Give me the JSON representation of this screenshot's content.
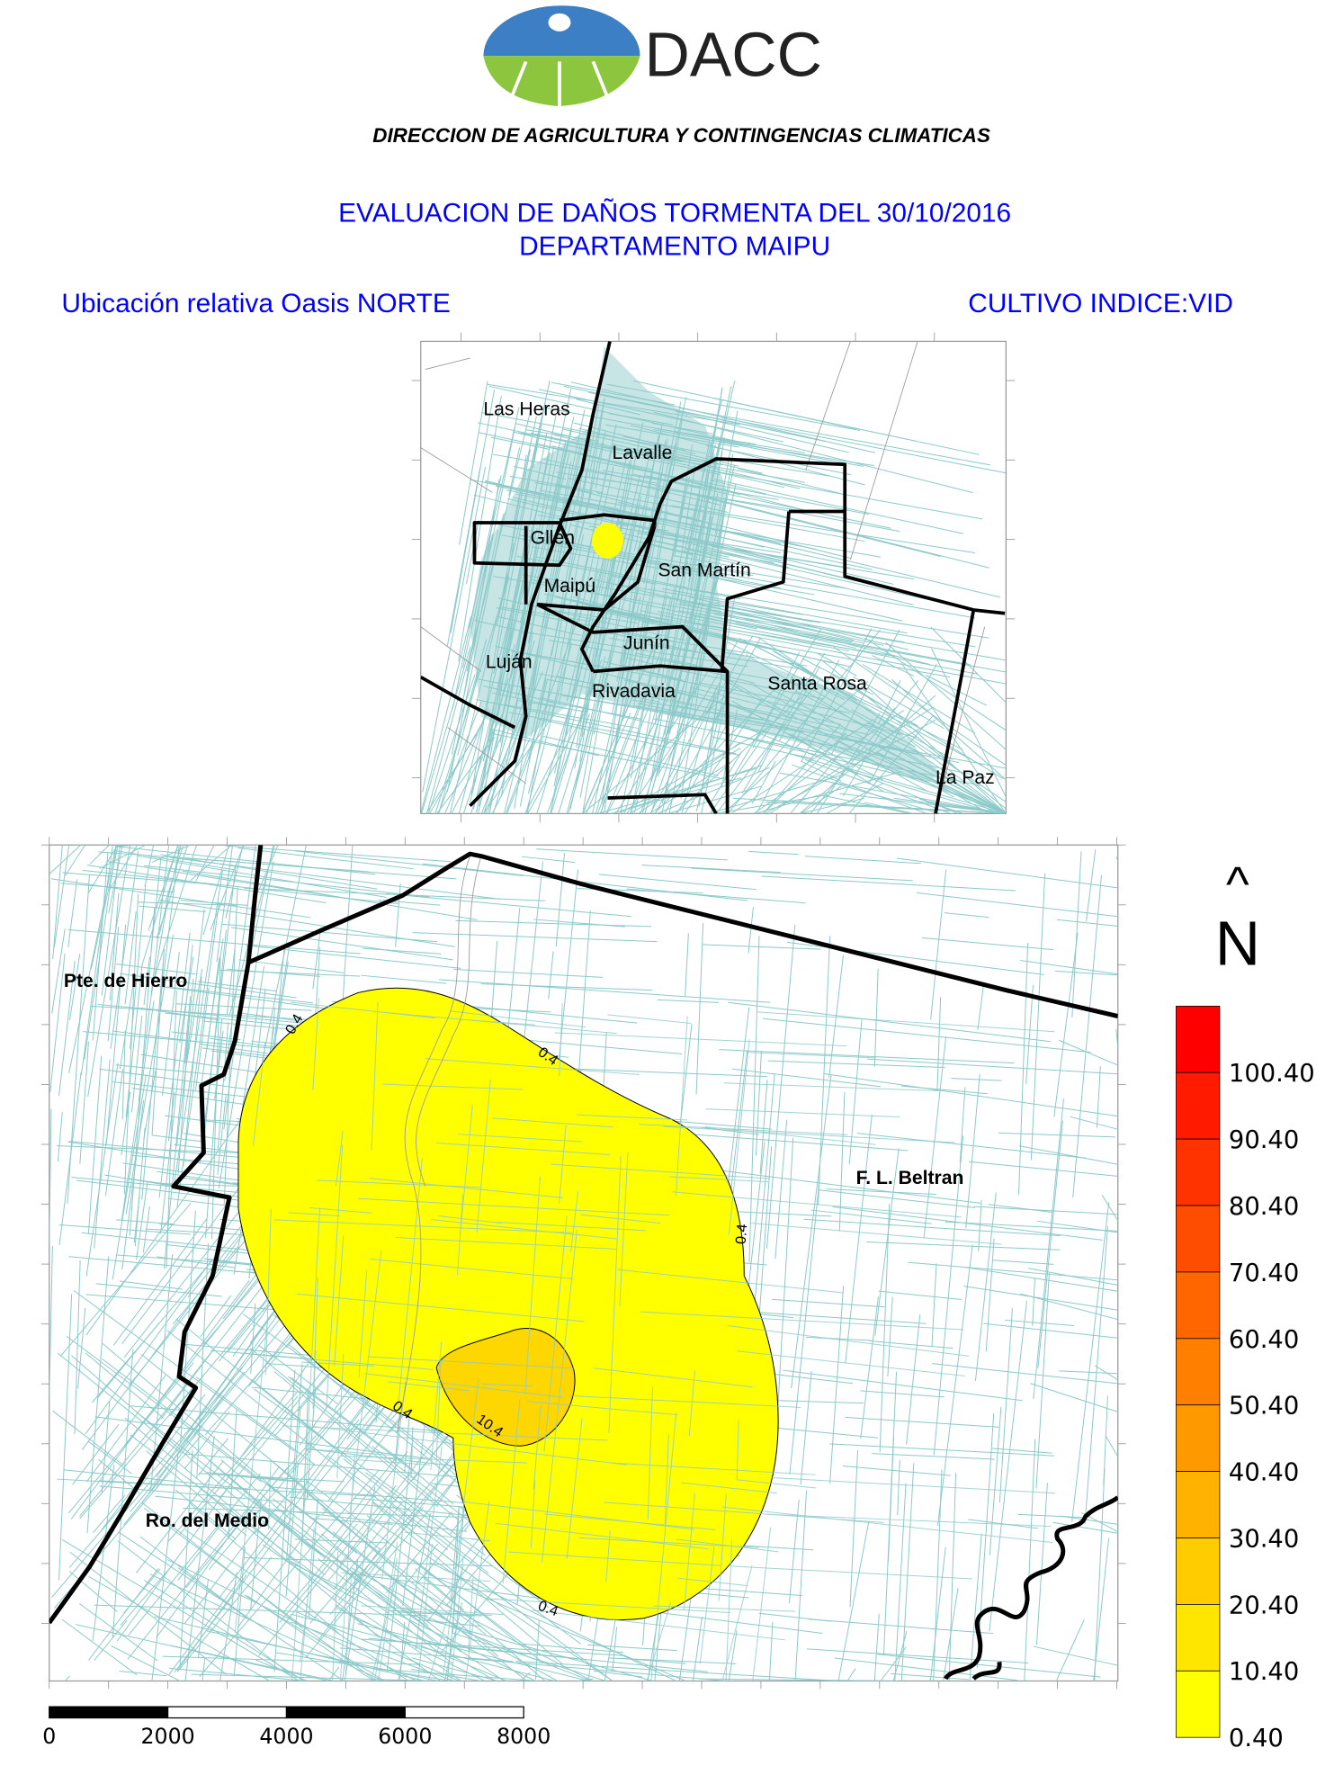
{
  "header": {
    "logo_text": "DACC",
    "organization": "DIRECCION DE AGRICULTURA Y CONTINGENCIAS CLIMATICAS",
    "title_line1": "EVALUACION DE DAÑOS TORMENTA DEL 30/10/2016",
    "title_line2": "DEPARTAMENTO MAIPU",
    "inset_caption": "Ubicación relativa Oasis NORTE",
    "crop_index": "CULTIVO INDICE:VID"
  },
  "inset_map": {
    "departments": [
      "Las Heras",
      "Lavalle",
      "Gllén",
      "San Martín",
      "Maipú",
      "Junín",
      "Luján",
      "Rivadavia",
      "Santa Rosa",
      "La Paz"
    ],
    "highlight_color": "#ffff00"
  },
  "main_map": {
    "place_labels": [
      "Pte. de Hierro",
      "F. L. Beltran",
      "Ro. del Medio"
    ],
    "contour_labels": [
      "0.4",
      "0.4",
      "0.4",
      "0.4",
      "0.4",
      "10.4"
    ],
    "north_arrow": {
      "arrow": "^",
      "letter": "N"
    }
  },
  "legend": {
    "labels": [
      "100.40",
      "90.40",
      "80.40",
      "70.40",
      "60.40",
      "50.40",
      "40.40",
      "30.40",
      "20.40",
      "10.40",
      "0.40"
    ],
    "colors": [
      "#ff0000",
      "#ff1a00",
      "#ff3300",
      "#ff4d00",
      "#ff6600",
      "#ff8000",
      "#ff9900",
      "#ffb300",
      "#ffcc00",
      "#ffe600",
      "#ffff00"
    ]
  },
  "scale_bar": {
    "labels": [
      "0",
      "2000",
      "4000",
      "6000",
      "8000"
    ]
  },
  "colors": {
    "title": "#0000ff",
    "parcel_lines": "#8cc9c9",
    "contour_fill_low": "#ffff00",
    "contour_fill_high": "#ffd700"
  }
}
